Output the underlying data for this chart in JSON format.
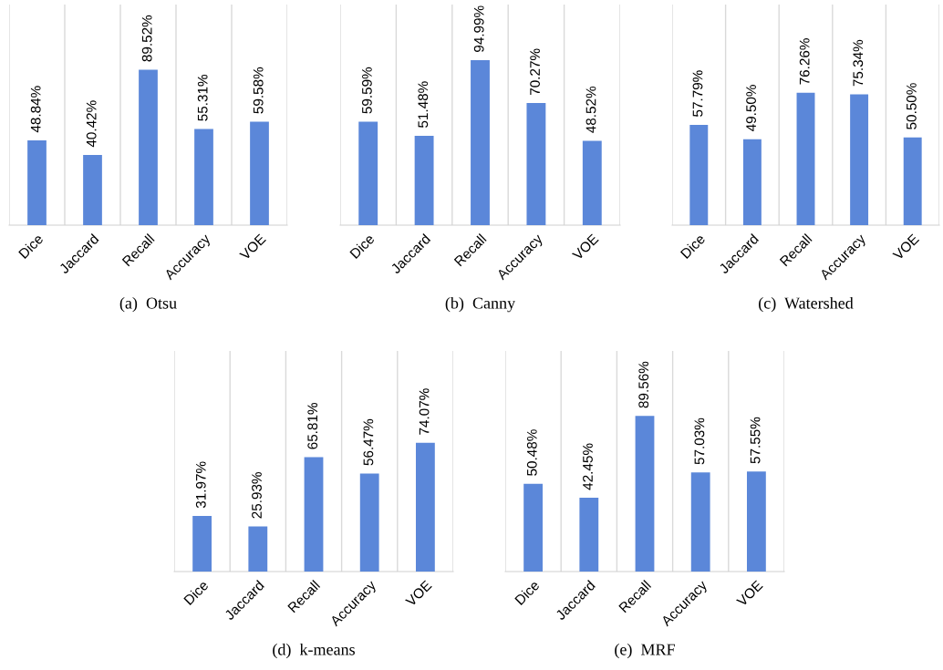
{
  "chart_data": [
    {
      "type": "bar",
      "title": "(a)  Otsu",
      "categories": [
        "Dice",
        "Jaccard",
        "Recall",
        "Accuracy",
        "VOE"
      ],
      "values": [
        48.84,
        40.42,
        89.52,
        55.31,
        59.58
      ],
      "value_labels": [
        "48.84%",
        "40.42%",
        "89.52%",
        "55.31%",
        "59.58%"
      ],
      "color": "#5b87d9",
      "ylim": [
        0,
        127
      ],
      "grid": "x",
      "tick_labels": "x"
    },
    {
      "type": "bar",
      "title": "(b)  Canny",
      "categories": [
        "Dice",
        "Jaccard",
        "Recall",
        "Accuracy",
        "VOE"
      ],
      "values": [
        59.59,
        51.48,
        94.99,
        70.27,
        48.52
      ],
      "value_labels": [
        "59.59%",
        "51.48%",
        "94.99%",
        "70.27%",
        "48.52%"
      ],
      "color": "#5b87d9",
      "ylim": [
        0,
        127
      ],
      "grid": "x",
      "tick_labels": "x"
    },
    {
      "type": "bar",
      "title": "(c)  Watershed",
      "categories": [
        "Dice",
        "Jaccard",
        "Recall",
        "Accuracy",
        "VOE"
      ],
      "values": [
        57.79,
        49.5,
        76.26,
        75.34,
        50.5
      ],
      "value_labels": [
        "57.79%",
        "49.50%",
        "76.26%",
        "75.34%",
        "50.50%"
      ],
      "color": "#5b87d9",
      "ylim": [
        0,
        127
      ],
      "grid": "x",
      "tick_labels": "x"
    },
    {
      "type": "bar",
      "title": "(d)  k-means",
      "categories": [
        "Dice",
        "Jaccard",
        "Recall",
        "Accuracy",
        "VOE"
      ],
      "values": [
        31.97,
        25.93,
        65.81,
        56.47,
        74.07
      ],
      "value_labels": [
        "31.97%",
        "25.93%",
        "65.81%",
        "56.47%",
        "74.07%"
      ],
      "color": "#5b87d9",
      "ylim": [
        0,
        127
      ],
      "grid": "x",
      "tick_labels": "x"
    },
    {
      "type": "bar",
      "title": "(e)  MRF",
      "categories": [
        "Dice",
        "Jaccard",
        "Recall",
        "Accuracy",
        "VOE"
      ],
      "values": [
        50.48,
        42.45,
        89.56,
        57.03,
        57.55
      ],
      "value_labels": [
        "50.48%",
        "42.45%",
        "89.56%",
        "57.03%",
        "57.55%"
      ],
      "color": "#5b87d9",
      "ylim": [
        0,
        127
      ],
      "grid": "x",
      "tick_labels": "x"
    }
  ]
}
